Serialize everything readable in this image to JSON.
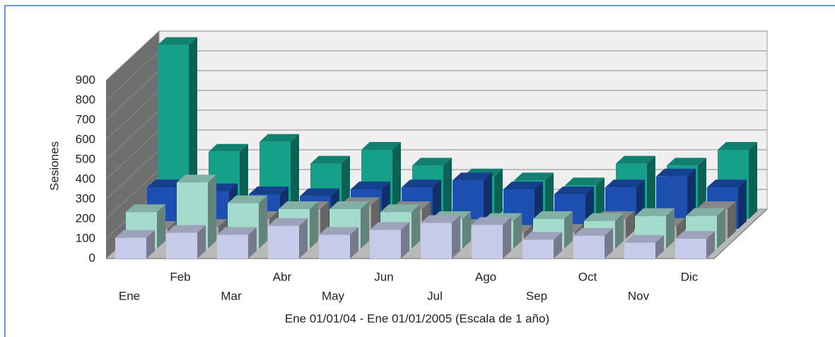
{
  "chart_data": {
    "type": "bar3d",
    "categories": [
      "Ene",
      "Feb",
      "Mar",
      "Abr",
      "May",
      "Jun",
      "Jul",
      "Ago",
      "Sep",
      "Oct",
      "Nov",
      "Dic"
    ],
    "series": [
      {
        "color": "#c6cbea",
        "values": [
          105,
          130,
          120,
          165,
          120,
          145,
          180,
          170,
          95,
          115,
          80,
          100
        ]
      },
      {
        "color": "#a3dccd",
        "values": [
          185,
          335,
          230,
          200,
          200,
          185,
          150,
          140,
          150,
          140,
          165,
          165
        ]
      },
      {
        "color": "#a9a9a9",
        "values": [
          50,
          60,
          100,
          150,
          170,
          150,
          60,
          30,
          35,
          100,
          65,
          150
        ]
      },
      {
        "color": "#1c4fb0",
        "values": [
          210,
          190,
          175,
          165,
          200,
          210,
          245,
          200,
          175,
          210,
          265,
          210
        ]
      },
      {
        "color": "#15a08a",
        "values": [
          880,
          340,
          390,
          280,
          350,
          270,
          215,
          195,
          170,
          280,
          270,
          350
        ]
      }
    ],
    "ylim": [
      0,
      900
    ],
    "yticks": [
      0,
      100,
      200,
      300,
      400,
      500,
      600,
      700,
      800,
      900
    ],
    "ylabel": "Sesiones",
    "xlabel": "Ene 01/01/04 - Ene 01/01/2005 (Escala de 1 año)",
    "grid": true
  }
}
